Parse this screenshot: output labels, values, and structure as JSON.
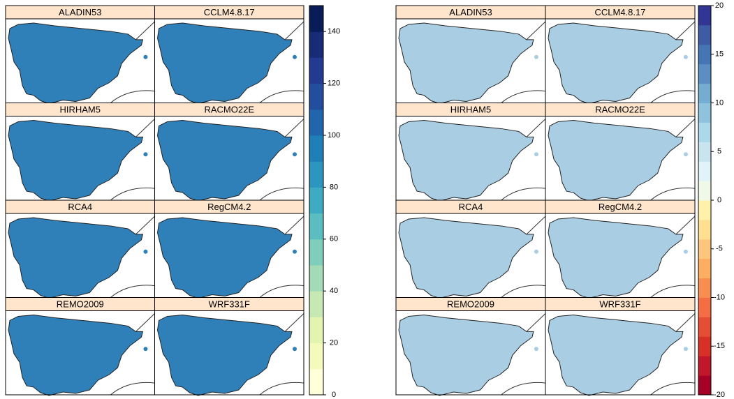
{
  "chart_data": [
    {
      "type": "map",
      "panels": [
        "ALADIN53",
        "CCLM4.8.17",
        "HIRHAM5",
        "RACMO22E",
        "RCA4",
        "RegCM4.2",
        "REMO2009",
        "WRF331F"
      ],
      "colorbar_lim": [
        0,
        150
      ],
      "colorbar_ticks": [
        0,
        20,
        40,
        60,
        80,
        100,
        120,
        140
      ],
      "colors": [
        "#ffffd9",
        "#f3fabc",
        "#e3f4b1",
        "#c6e9b4",
        "#a3dbb7",
        "#7fcdbb",
        "#5bbdc0",
        "#3fabc2",
        "#2c96c0",
        "#1f7fb7",
        "#2166ac",
        "#234ea0",
        "#243a92",
        "#172b77",
        "#081d58"
      ]
    },
    {
      "type": "map",
      "panels": [
        "ALADIN53",
        "CCLM4.8.17",
        "HIRHAM5",
        "RACMO22E",
        "RCA4",
        "RegCM4.2",
        "REMO2009",
        "WRF331F"
      ],
      "colorbar_lim": [
        -20,
        20
      ],
      "colorbar_ticks": [
        -20,
        -15,
        -10,
        -5,
        0,
        5,
        10,
        15,
        20
      ],
      "colors": [
        "#a50026",
        "#c0182a",
        "#d73027",
        "#e54e35",
        "#f46d43",
        "#f88d52",
        "#fdae61",
        "#fec67c",
        "#fee090",
        "#fff1a9",
        "#f0f9e8",
        "#e0f3f8",
        "#c7e4ef",
        "#abd9e9",
        "#8fc3dd",
        "#74add1",
        "#5d8ec3",
        "#4575b4",
        "#3f5ba6",
        "#313695"
      ]
    }
  ]
}
